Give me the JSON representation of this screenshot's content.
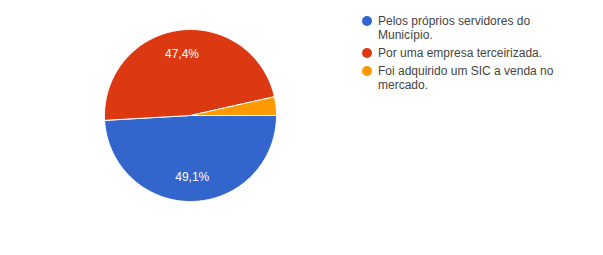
{
  "chart_data": {
    "type": "pie",
    "categories": [
      "Pelos próprios servidores do Município.",
      "Por uma empresa terceirizada.",
      "Foi adquirido um SIC a venda no mercado."
    ],
    "values": [
      49.1,
      47.4,
      3.5
    ],
    "value_labels": [
      "49,1%",
      "47,4%",
      null
    ],
    "colors": [
      "#3366cc",
      "#dc3912",
      "#ff9900"
    ],
    "data_labels": true,
    "legend": "right"
  }
}
